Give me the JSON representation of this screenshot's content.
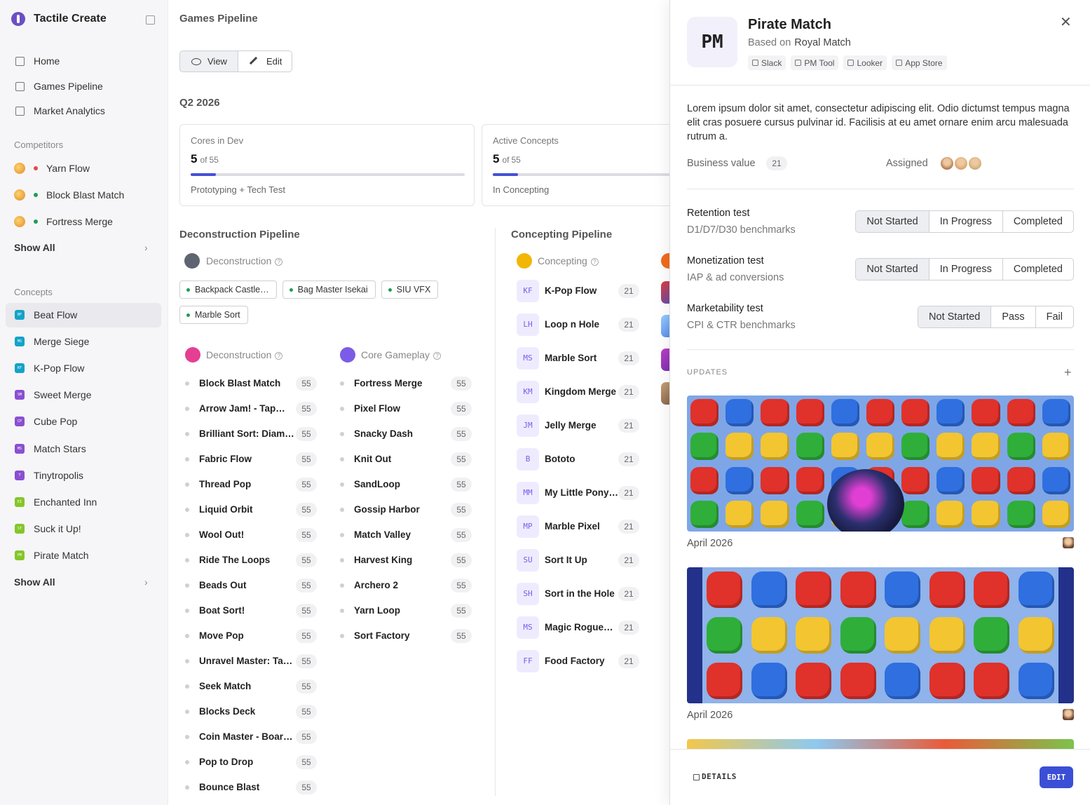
{
  "sidebar": {
    "brand": "Tactile Create",
    "nav": [
      "Home",
      "Games Pipeline",
      "Market Analytics"
    ],
    "competitors_heading": "Competitors",
    "competitors": [
      {
        "label": "Yarn Flow",
        "dot": "#e5484d"
      },
      {
        "label": "Block Blast Match",
        "dot": "#1f9d55"
      },
      {
        "label": "Fortress Merge",
        "dot": "#1f9d55"
      }
    ],
    "competitors_show_all": "Show All",
    "concepts_heading": "Concepts",
    "active_concept": 0,
    "concepts": [
      {
        "badge": "BF",
        "label": "Beat Flow",
        "color": "#14a3c7"
      },
      {
        "badge": "MS",
        "label": "Merge Siege",
        "color": "#14a3c7"
      },
      {
        "badge": "KF",
        "label": "K-Pop Flow",
        "color": "#14a3c7"
      },
      {
        "badge": "SM",
        "label": "Sweet Merge",
        "color": "#8a4fd1"
      },
      {
        "badge": "CP",
        "label": "Cube Pop",
        "color": "#8a4fd1"
      },
      {
        "badge": "MS",
        "label": "Match Stars",
        "color": "#8a4fd1"
      },
      {
        "badge": "T",
        "label": "Tinytropolis",
        "color": "#8a4fd1"
      },
      {
        "badge": "EI",
        "label": "Enchanted Inn",
        "color": "#84c62a"
      },
      {
        "badge": "ST",
        "label": "Suck it Up!",
        "color": "#84c62a"
      },
      {
        "badge": "PM",
        "label": "Pirate Match",
        "color": "#84c62a"
      }
    ],
    "concepts_show_all": "Show All"
  },
  "main": {
    "title": "Games Pipeline",
    "view": "View",
    "edit": "Edit",
    "quarter": "Q2 2026",
    "stats": [
      {
        "title": "Cores in Dev",
        "value": 5,
        "of": "of",
        "total": 55,
        "caption": "Prototyping + Tech Test"
      },
      {
        "title": "Active Concepts",
        "value": 5,
        "of": "of",
        "total": 55,
        "caption": "In Concepting"
      }
    ],
    "deconstruction": {
      "heading": "Deconstruction Pipeline",
      "stage": "Deconstruction",
      "chips": [
        "Backpack Castle…",
        "Bag Master Isekai",
        "SIU VFX",
        "Marble Sort"
      ],
      "columns": [
        {
          "title": "Deconstruction",
          "items": [
            {
              "name": "Block Blast Match",
              "count": 55
            },
            {
              "name": "Arrow Jam! - Tap…",
              "count": 55
            },
            {
              "name": "Brilliant Sort: Diam…",
              "count": 55
            },
            {
              "name": "Fabric Flow",
              "count": 55
            },
            {
              "name": "Thread Pop",
              "count": 55
            },
            {
              "name": "Liquid Orbit",
              "count": 55
            },
            {
              "name": "Wool Out!",
              "count": 55
            },
            {
              "name": "Ride The Loops",
              "count": 55
            },
            {
              "name": "Beads Out",
              "count": 55
            },
            {
              "name": "Boat Sort!",
              "count": 55
            },
            {
              "name": "Move Pop",
              "count": 55
            },
            {
              "name": "Unravel Master: Ta…",
              "count": 55
            },
            {
              "name": "Seek Match",
              "count": 55
            },
            {
              "name": "Blocks Deck",
              "count": 55
            },
            {
              "name": "Coin Master - Boar…",
              "count": 55
            },
            {
              "name": "Pop to Drop",
              "count": 55
            },
            {
              "name": "Bounce Blast",
              "count": 55
            }
          ]
        },
        {
          "title": "Core Gameplay",
          "items": [
            {
              "name": "Fortress Merge",
              "count": 55
            },
            {
              "name": "Pixel Flow",
              "count": 55
            },
            {
              "name": "Snacky Dash",
              "count": 55
            },
            {
              "name": "Knit Out",
              "count": 55
            },
            {
              "name": "SandLoop",
              "count": 55
            },
            {
              "name": "Gossip Harbor",
              "count": 55
            },
            {
              "name": "Match Valley",
              "count": 55
            },
            {
              "name": "Harvest King",
              "count": 55
            },
            {
              "name": "Archero 2",
              "count": 55
            },
            {
              "name": "Yarn Loop",
              "count": 55
            },
            {
              "name": "Sort Factory",
              "count": 55
            }
          ]
        }
      ]
    },
    "concepting": {
      "heading": "Concepting Pipeline",
      "stage": "Concepting",
      "items": [
        {
          "badge": "KF",
          "name": "K-Pop Flow",
          "count": 21
        },
        {
          "badge": "LH",
          "name": "Loop n Hole",
          "count": 21
        },
        {
          "badge": "MS",
          "name": "Marble Sort",
          "count": 21
        },
        {
          "badge": "KM",
          "name": "Kingdom Merge",
          "count": 21
        },
        {
          "badge": "JM",
          "name": "Jelly Merge",
          "count": 21
        },
        {
          "badge": "B",
          "name": "Bototo",
          "count": 21
        },
        {
          "badge": "MM",
          "name": "My Little Pony…",
          "count": 21
        },
        {
          "badge": "MP",
          "name": "Marble Pixel",
          "count": 21
        },
        {
          "badge": "SU",
          "name": "Sort It Up",
          "count": 21
        },
        {
          "badge": "SH",
          "name": "Sort in the Hole",
          "count": 21
        },
        {
          "badge": "MS",
          "name": "Magic Rogue…",
          "count": 21
        },
        {
          "badge": "FF",
          "name": "Food Factory",
          "count": 21
        }
      ]
    }
  },
  "panel": {
    "avatar": "PM",
    "title": "Pirate Match",
    "based_on": "Based on",
    "based_game": "Royal Match",
    "links": [
      "Slack",
      "PM Tool",
      "Looker",
      "App Store"
    ],
    "description": "Lorem ipsum dolor sit amet, consectetur adipiscing elit. Odio dictumst tempus magna elit cras posuere cursus pulvinar id. Facilisis at eu amet ornare enim arcu malesuada rutrum a.",
    "business_value_label": "Business value",
    "business_value": 21,
    "assigned_label": "Assigned",
    "tests": [
      {
        "name": "Retention test",
        "detail": "D1/D7/D30 benchmarks",
        "options": [
          "Not Started",
          "In Progress",
          "Completed"
        ],
        "selected": 0
      },
      {
        "name": "Monetization test",
        "detail": "IAP & ad conversions",
        "options": [
          "Not Started",
          "In Progress",
          "Completed"
        ],
        "selected": 0
      },
      {
        "name": "Marketability test",
        "detail": "CPI & CTR benchmarks",
        "options": [
          "Not Started",
          "Pass",
          "Fail"
        ],
        "selected": 0
      }
    ],
    "updates_heading": "UPDATES",
    "updates": [
      {
        "date": "April 2026"
      },
      {
        "date": "April 2026"
      }
    ],
    "details": "DETAILS",
    "edit": "EDIT"
  }
}
